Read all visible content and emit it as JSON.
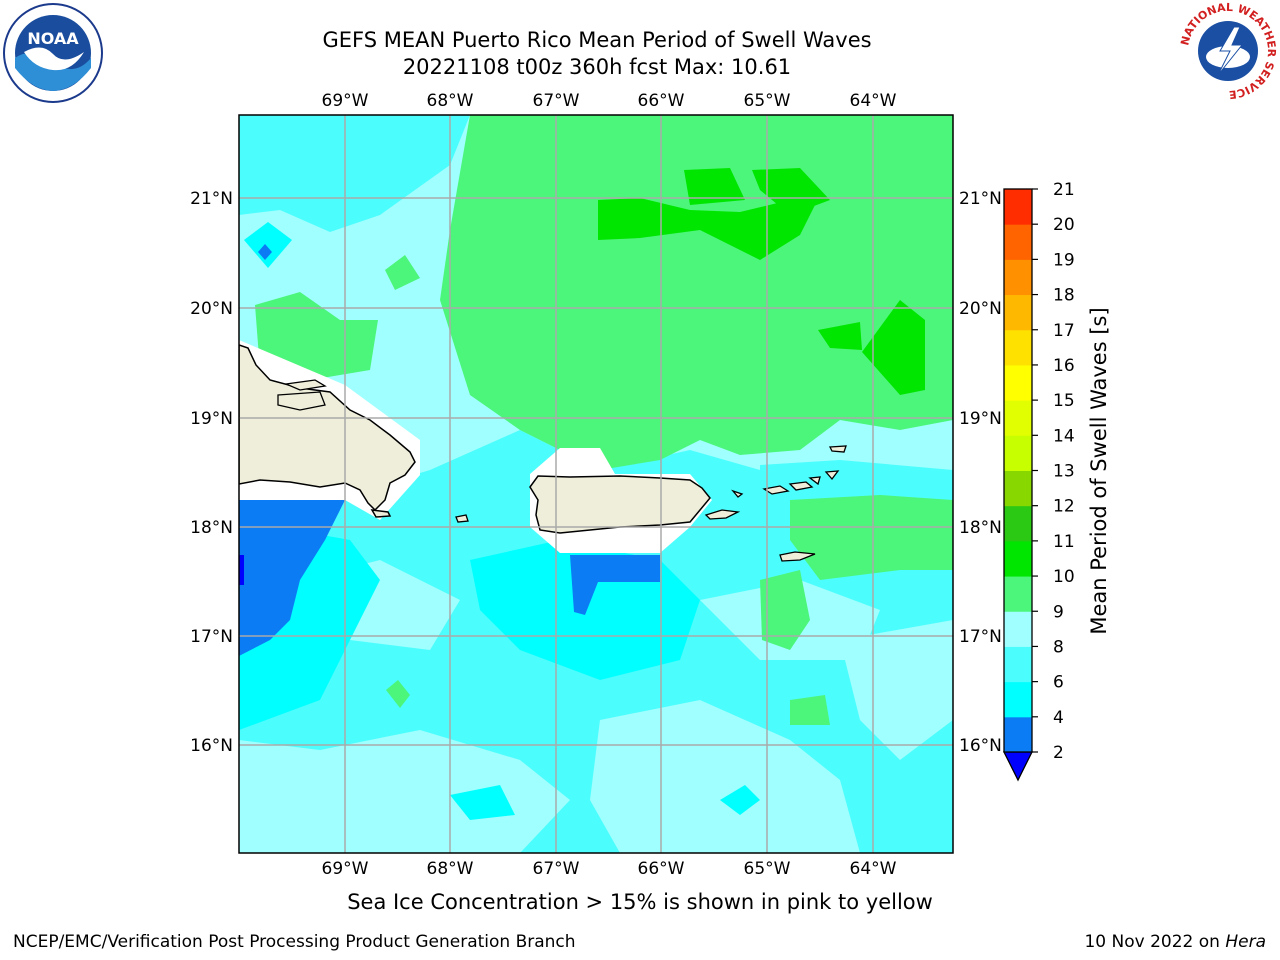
{
  "title": {
    "line1": "GEFS MEAN Puerto Rico Mean Period of Swell Waves",
    "line2": "20221108 t00z 360h fcst   Max: 10.61"
  },
  "logos": {
    "left": "NOAA",
    "right_ring_text": "NATIONAL WEATHER SERVICE"
  },
  "map": {
    "lon_labels": [
      "69°W",
      "68°W",
      "67°W",
      "66°W",
      "65°W",
      "64°W"
    ],
    "lat_labels": [
      "21°N",
      "20°N",
      "19°N",
      "18°N",
      "17°N",
      "16°N"
    ]
  },
  "colorbar": {
    "label": "Mean Period of Swell Waves [s]",
    "ticks": [
      "2",
      "4",
      "6",
      "8",
      "9",
      "10",
      "11",
      "12",
      "13",
      "14",
      "15",
      "16",
      "17",
      "18",
      "19",
      "20",
      "21"
    ],
    "colors": [
      "#0000ff",
      "#0b7cf4",
      "#00ffff",
      "#4cfdfd",
      "#a0ffff",
      "#4cf67a",
      "#00e600",
      "#2bc814",
      "#88d800",
      "#c8ff00",
      "#e1ff00",
      "#ffff00",
      "#ffe100",
      "#ffb800",
      "#ff9000",
      "#ff6400",
      "#ff2d00",
      "#ff0000"
    ]
  },
  "footer": {
    "note": "Sea Ice Concentration > 15% is shown in pink to yellow",
    "credit": "NCEP/EMC/Verification Post Processing Product Generation Branch",
    "date": "10 Nov 2022 on",
    "machine": "Hera"
  }
}
